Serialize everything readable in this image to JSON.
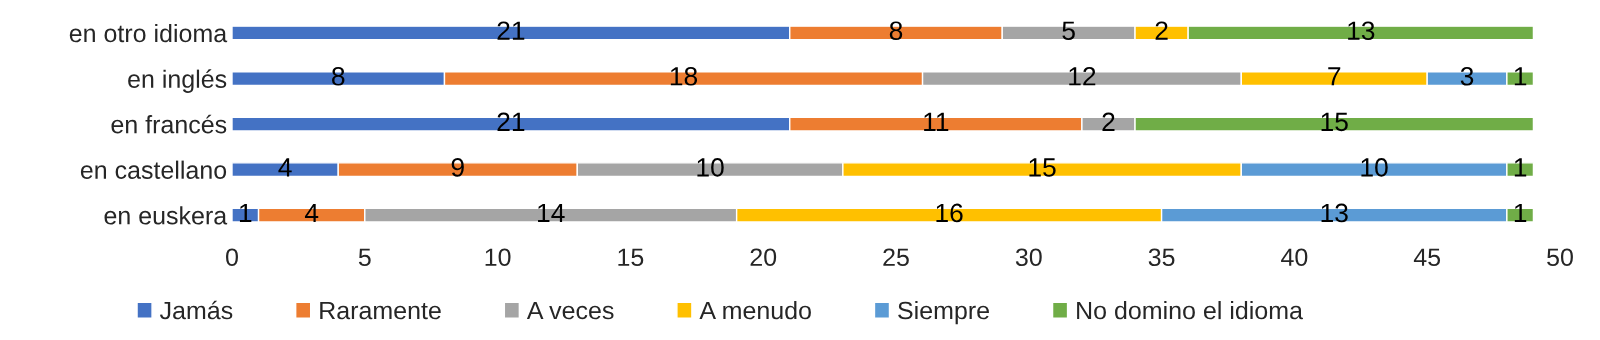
{
  "chart_data": {
    "type": "bar",
    "orientation": "horizontal",
    "stacked": true,
    "data_labels": true,
    "legend": "bottom",
    "grid": false,
    "categories": [
      "en otro idioma",
      "en inglés",
      "en francés",
      "en castellano",
      "en euskera"
    ],
    "xlim": [
      0,
      50
    ],
    "xticks": [
      0,
      5,
      10,
      15,
      20,
      25,
      30,
      35,
      40,
      45,
      50
    ],
    "series": [
      {
        "name": "Jamás",
        "color": "#4472c4",
        "values": [
          21,
          8,
          21,
          4,
          1
        ]
      },
      {
        "name": "Raramente",
        "color": "#ed7d31",
        "values": [
          8,
          18,
          11,
          9,
          4
        ]
      },
      {
        "name": "A veces",
        "color": "#a5a5a5",
        "values": [
          5,
          12,
          2,
          10,
          14
        ]
      },
      {
        "name": "A menudo",
        "color": "#ffc000",
        "values": [
          2,
          7,
          null,
          15,
          16
        ]
      },
      {
        "name": "Siempre",
        "color": "#5b9bd5",
        "values": [
          null,
          3,
          null,
          10,
          13
        ]
      },
      {
        "name": "No domino el idioma",
        "color": "#70ad47",
        "values": [
          13,
          1,
          15,
          1,
          1
        ]
      }
    ]
  }
}
